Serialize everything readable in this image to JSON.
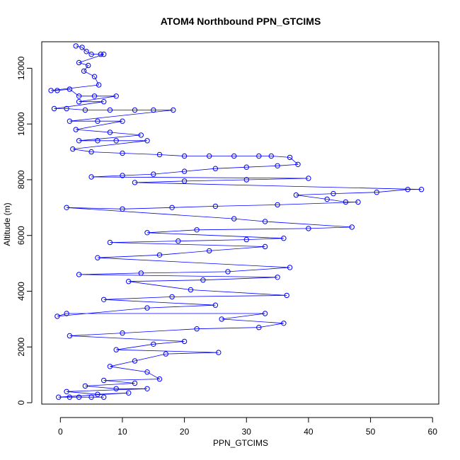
{
  "chart_data": {
    "type": "scatter",
    "title": "ATOM4 Northbound PPN_GTCIMS",
    "xlabel": "PPN_GTCIMS",
    "ylabel": "Altitude (m)",
    "xlim": [
      -3,
      61
    ],
    "ylim": [
      -50,
      12950
    ],
    "x_ticks": [
      0,
      10,
      20,
      30,
      40,
      50,
      60
    ],
    "y_ticks": [
      0,
      2000,
      4000,
      6000,
      8000,
      10000,
      12000
    ],
    "grid": false,
    "legend": "none",
    "series": [
      {
        "color": "#0000ff",
        "marker": "open-circle",
        "connect_points": true,
        "points": [
          [
            2.5,
            12800
          ],
          [
            3.5,
            12750
          ],
          [
            4.2,
            12600
          ],
          [
            5.0,
            12500
          ],
          [
            6.5,
            12500
          ],
          [
            7.0,
            12500
          ],
          [
            3.0,
            12200
          ],
          [
            4.5,
            12100
          ],
          [
            3.8,
            11900
          ],
          [
            5.5,
            11700
          ],
          [
            6.2,
            11400
          ],
          [
            -1.5,
            11200
          ],
          [
            -0.5,
            11200
          ],
          [
            1.5,
            11250
          ],
          [
            3.0,
            11000
          ],
          [
            5.5,
            11000
          ],
          [
            9.0,
            11000
          ],
          [
            3.0,
            10800
          ],
          [
            7.0,
            10800
          ],
          [
            -1.0,
            10550
          ],
          [
            1.0,
            10550
          ],
          [
            4.0,
            10500
          ],
          [
            8.0,
            10500
          ],
          [
            12.0,
            10500
          ],
          [
            15.0,
            10500
          ],
          [
            18.2,
            10500
          ],
          [
            1.5,
            10100
          ],
          [
            6.0,
            10100
          ],
          [
            10.0,
            10100
          ],
          [
            2.5,
            9800
          ],
          [
            8.0,
            9700
          ],
          [
            13.0,
            9600
          ],
          [
            3.0,
            9400
          ],
          [
            6.0,
            9400
          ],
          [
            9.0,
            9400
          ],
          [
            14.0,
            9400
          ],
          [
            2.0,
            9100
          ],
          [
            5.0,
            9000
          ],
          [
            10.0,
            8950
          ],
          [
            16.0,
            8900
          ],
          [
            20.0,
            8850
          ],
          [
            24.0,
            8850
          ],
          [
            28.0,
            8850
          ],
          [
            32.0,
            8850
          ],
          [
            34.0,
            8850
          ],
          [
            37.0,
            8800
          ],
          [
            38.3,
            8550
          ],
          [
            35.0,
            8500
          ],
          [
            30.0,
            8450
          ],
          [
            25.0,
            8400
          ],
          [
            20.0,
            8300
          ],
          [
            15.0,
            8200
          ],
          [
            10.0,
            8150
          ],
          [
            5.0,
            8100
          ],
          [
            40.0,
            8050
          ],
          [
            30.0,
            8000
          ],
          [
            20.0,
            7950
          ],
          [
            12.0,
            7900
          ],
          [
            58.2,
            7650
          ],
          [
            56.0,
            7650
          ],
          [
            51.0,
            7550
          ],
          [
            44.0,
            7500
          ],
          [
            38.0,
            7450
          ],
          [
            43.0,
            7300
          ],
          [
            46.0,
            7200
          ],
          [
            48.0,
            7200
          ],
          [
            35.0,
            7100
          ],
          [
            25.0,
            7050
          ],
          [
            18.0,
            7000
          ],
          [
            10.0,
            6950
          ],
          [
            1.0,
            7000
          ],
          [
            28.0,
            6600
          ],
          [
            33.0,
            6500
          ],
          [
            47.0,
            6300
          ],
          [
            40.0,
            6250
          ],
          [
            22.0,
            6200
          ],
          [
            14.0,
            6100
          ],
          [
            36.0,
            5900
          ],
          [
            30.0,
            5850
          ],
          [
            19.0,
            5800
          ],
          [
            8.0,
            5750
          ],
          [
            33.0,
            5600
          ],
          [
            24.0,
            5450
          ],
          [
            16.0,
            5300
          ],
          [
            6.0,
            5200
          ],
          [
            37.0,
            4850
          ],
          [
            27.0,
            4700
          ],
          [
            13.0,
            4650
          ],
          [
            3.0,
            4600
          ],
          [
            35.0,
            4500
          ],
          [
            23.0,
            4400
          ],
          [
            11.0,
            4350
          ],
          [
            21.0,
            4050
          ],
          [
            36.5,
            3850
          ],
          [
            18.0,
            3800
          ],
          [
            7.0,
            3700
          ],
          [
            25.0,
            3500
          ],
          [
            14.0,
            3400
          ],
          [
            -0.5,
            3100
          ],
          [
            1.0,
            3200
          ],
          [
            33.0,
            3200
          ],
          [
            26.0,
            3000
          ],
          [
            36.0,
            2850
          ],
          [
            32.0,
            2700
          ],
          [
            22.0,
            2650
          ],
          [
            10.0,
            2500
          ],
          [
            1.5,
            2400
          ],
          [
            20.0,
            2200
          ],
          [
            15.0,
            2100
          ],
          [
            9.0,
            1900
          ],
          [
            25.5,
            1800
          ],
          [
            17.0,
            1750
          ],
          [
            12.0,
            1500
          ],
          [
            8.0,
            1300
          ],
          [
            14.0,
            1100
          ],
          [
            16.0,
            850
          ],
          [
            7.0,
            800
          ],
          [
            12.0,
            700
          ],
          [
            4.0,
            600
          ],
          [
            9.0,
            500
          ],
          [
            14.0,
            500
          ],
          [
            1.0,
            400
          ],
          [
            6.0,
            300
          ],
          [
            11.0,
            350
          ],
          [
            -0.3,
            200
          ],
          [
            1.5,
            200
          ],
          [
            3.0,
            200
          ],
          [
            5.0,
            200
          ],
          [
            7.0,
            200
          ]
        ]
      }
    ]
  }
}
